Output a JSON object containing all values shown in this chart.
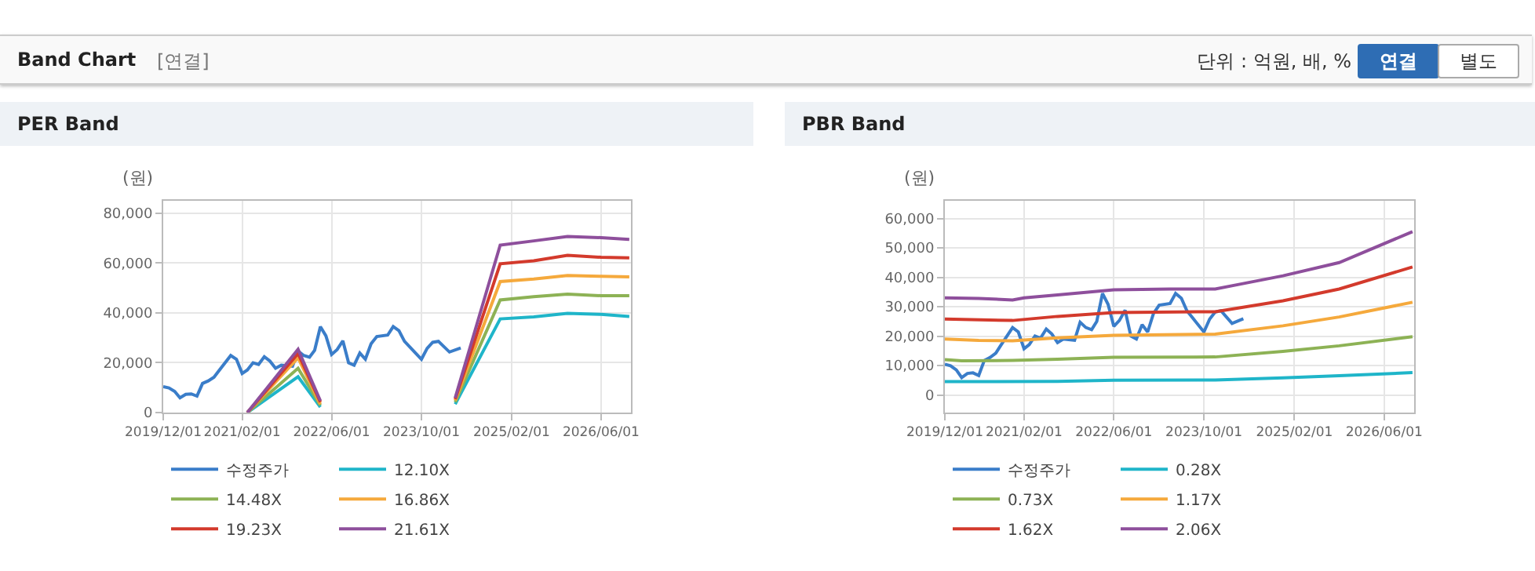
{
  "chart_data": [
    {
      "type": "line",
      "title": "PER Band",
      "ylabel": "(원)",
      "annotations": [
        "Band Chart",
        "[연결]",
        "단위 : 억원, 배, %",
        "연결",
        "별도"
      ],
      "xlim": [
        "2019-12-01",
        "2026-11-10"
      ],
      "xticks": [
        {
          "value": "2019-12-01",
          "label": "2019/12/01"
        },
        {
          "value": "2021-02-01",
          "label": "2021/02/01"
        },
        {
          "value": "2022-06-01",
          "label": "2022/06/01"
        },
        {
          "value": "2023-10-01",
          "label": "2023/10/01"
        },
        {
          "value": "2025-02-01",
          "label": "2025/02/01"
        },
        {
          "value": "2026-06-01",
          "label": "2026/06/01"
        }
      ],
      "ylim": [
        0,
        85000
      ],
      "yticks": [
        0,
        {
          "value": 20000,
          "label": "20,000"
        },
        {
          "value": 40000,
          "label": "40,000"
        },
        {
          "value": 60000,
          "label": "60,000"
        },
        {
          "value": 80000,
          "label": "80,000"
        }
      ],
      "grid": true,
      "legend": "bottom",
      "marker": "none",
      "line_style": "solid",
      "series": [
        {
          "name": "수정주가",
          "color": "#3a7dc9",
          "x": [
            "2019-12",
            "2020-01",
            "2020-02",
            "2020-03",
            "2020-04",
            "2020-05",
            "2020-06",
            "2020-07",
            "2020-08",
            "2020-09",
            "2020-10",
            "2020-12",
            "2021-01",
            "2021-02",
            "2021-03",
            "2021-04",
            "2021-05",
            "2021-06",
            "2021-07",
            "2021-08",
            "2021-09",
            "2021-11",
            "2021-12",
            "2022-01",
            "2022-02",
            "2022-03",
            "2022-04",
            "2022-05",
            "2022-06",
            "2022-07",
            "2022-08",
            "2022-09",
            "2022-10",
            "2022-11",
            "2022-12",
            "2023-01",
            "2023-02",
            "2023-04",
            "2023-05",
            "2023-06",
            "2023-07",
            "2023-08",
            "2023-10",
            "2023-11",
            "2023-12",
            "2024-01",
            "2024-03",
            "2024-05"
          ],
          "values": [
            10400,
            9900,
            8500,
            5900,
            7300,
            7500,
            6600,
            11700,
            12700,
            14200,
            17100,
            22900,
            21400,
            15700,
            17100,
            20000,
            19300,
            22400,
            20700,
            17800,
            19000,
            18600,
            24700,
            22900,
            22200,
            25000,
            34500,
            30800,
            23300,
            25300,
            28800,
            20000,
            19000,
            23900,
            21400,
            27600,
            30500,
            31100,
            34500,
            32900,
            28600,
            26200,
            21400,
            25800,
            28200,
            28600,
            24300,
            25900
          ]
        },
        {
          "name": "12.10X",
          "color": "#1fb5c9",
          "x": [
            "2021-03",
            "2021-12",
            "2022-04",
            "2022-05",
            "2024-04",
            "2024-12",
            "2025-06",
            "2025-12",
            "2026-06",
            "2026-11"
          ],
          "values": [
            0,
            14400,
            2200,
            null,
            3400,
            37600,
            38400,
            39800,
            39400,
            38600
          ]
        },
        {
          "name": "14.48X",
          "color": "#8db255",
          "x": [
            "2021-03",
            "2021-12",
            "2022-04",
            "2022-05",
            "2024-04",
            "2024-12",
            "2025-06",
            "2025-12",
            "2026-06",
            "2026-11"
          ],
          "values": [
            0,
            17800,
            2900,
            null,
            4200,
            45200,
            46500,
            47500,
            46900,
            46900
          ]
        },
        {
          "name": "16.86X",
          "color": "#f5a93c",
          "x": [
            "2021-03",
            "2021-12",
            "2022-04",
            "2022-05",
            "2024-04",
            "2024-12",
            "2025-06",
            "2025-12",
            "2026-06",
            "2026-11"
          ],
          "values": [
            0,
            22000,
            3400,
            null,
            4900,
            52600,
            53600,
            55000,
            54700,
            54500
          ]
        },
        {
          "name": "19.23X",
          "color": "#d33a2c",
          "x": [
            "2021-03",
            "2021-12",
            "2022-04",
            "2022-05",
            "2024-04",
            "2024-12",
            "2025-06",
            "2025-12",
            "2026-06",
            "2026-11"
          ],
          "values": [
            0,
            23700,
            4200,
            null,
            5400,
            59700,
            60900,
            63100,
            62300,
            62100
          ]
        },
        {
          "name": "21.61X",
          "color": "#8e4f9c",
          "x": [
            "2021-03",
            "2021-12",
            "2022-04",
            "2022-05",
            "2024-04",
            "2024-12",
            "2025-06",
            "2025-12",
            "2026-06",
            "2026-11"
          ],
          "values": [
            0,
            25400,
            4700,
            null,
            5900,
            67200,
            68900,
            70700,
            70200,
            69500
          ]
        }
      ]
    },
    {
      "type": "line",
      "title": "PBR Band",
      "ylabel": "(원)",
      "xlim": [
        "2019-12-01",
        "2026-11-10"
      ],
      "xticks": [
        {
          "value": "2019-12-01",
          "label": "2019/12/01"
        },
        {
          "value": "2021-02-01",
          "label": "2021/02/01"
        },
        {
          "value": "2022-06-01",
          "label": "2022/06/01"
        },
        {
          "value": "2023-10-01",
          "label": "2023/10/01"
        },
        {
          "value": "2025-02-01",
          "label": "2025/02/01"
        },
        {
          "value": "2026-06-01",
          "label": "2026/06/01"
        }
      ],
      "ylim": [
        -6000,
        66000
      ],
      "yticks": [
        0,
        {
          "value": 10000,
          "label": "10,000"
        },
        {
          "value": 20000,
          "label": "20,000"
        },
        {
          "value": 30000,
          "label": "30,000"
        },
        {
          "value": 40000,
          "label": "40,000"
        },
        {
          "value": 50000,
          "label": "50,000"
        },
        {
          "value": 60000,
          "label": "60,000"
        }
      ],
      "grid": true,
      "legend": "bottom",
      "marker": "none",
      "line_style": "solid",
      "series": [
        {
          "name": "수정주가",
          "color": "#3a7dc9",
          "x": [
            "2019-12",
            "2020-01",
            "2020-02",
            "2020-03",
            "2020-04",
            "2020-05",
            "2020-06",
            "2020-07",
            "2020-08",
            "2020-09",
            "2020-10",
            "2020-12",
            "2021-01",
            "2021-02",
            "2021-03",
            "2021-04",
            "2021-05",
            "2021-06",
            "2021-07",
            "2021-08",
            "2021-09",
            "2021-11",
            "2021-12",
            "2022-01",
            "2022-02",
            "2022-03",
            "2022-04",
            "2022-05",
            "2022-06",
            "2022-07",
            "2022-08",
            "2022-09",
            "2022-10",
            "2022-11",
            "2022-12",
            "2023-01",
            "2023-02",
            "2023-04",
            "2023-05",
            "2023-06",
            "2023-07",
            "2023-08",
            "2023-10",
            "2023-11",
            "2023-12",
            "2024-01",
            "2024-03",
            "2024-05"
          ],
          "values": [
            10400,
            9900,
            8500,
            5900,
            7300,
            7500,
            6600,
            11700,
            12700,
            14200,
            17100,
            22900,
            21400,
            15700,
            17100,
            20000,
            19300,
            22400,
            20700,
            17800,
            19000,
            18600,
            24700,
            22900,
            22200,
            25000,
            34500,
            30800,
            23300,
            25300,
            28800,
            20000,
            19000,
            23900,
            21400,
            27600,
            30500,
            31100,
            34500,
            32900,
            28600,
            26200,
            21400,
            25800,
            28200,
            28600,
            24300,
            25900
          ]
        },
        {
          "name": "0.28X",
          "color": "#1fb5c9",
          "x": [
            "2019-12",
            "2021-08",
            "2022-06",
            "2023-12",
            "2024-12",
            "2025-10",
            "2026-11"
          ],
          "values": [
            4500,
            4600,
            5000,
            5100,
            5800,
            6500,
            7600
          ]
        },
        {
          "name": "0.73X",
          "color": "#8db255",
          "x": [
            "2019-12",
            "2020-03",
            "2020-12",
            "2021-08",
            "2022-06",
            "2023-12",
            "2024-12",
            "2025-10",
            "2026-11"
          ],
          "values": [
            12000,
            11600,
            11700,
            12100,
            12800,
            12900,
            14800,
            16700,
            19800
          ]
        },
        {
          "name": "1.17X",
          "color": "#f5a93c",
          "x": [
            "2019-12",
            "2020-06",
            "2020-12",
            "2021-08",
            "2022-06",
            "2023-12",
            "2024-12",
            "2025-10",
            "2026-11"
          ],
          "values": [
            19000,
            18500,
            18400,
            19400,
            20300,
            20700,
            23500,
            26500,
            31500
          ]
        },
        {
          "name": "1.62X",
          "color": "#d33a2c",
          "x": [
            "2019-12",
            "2020-12",
            "2021-08",
            "2022-06",
            "2023-12",
            "2024-12",
            "2025-10",
            "2026-11"
          ],
          "values": [
            25800,
            25300,
            26700,
            28000,
            28300,
            32000,
            36000,
            43500
          ]
        },
        {
          "name": "2.06X",
          "color": "#8e4f9c",
          "x": [
            "2019-12",
            "2020-06",
            "2020-12",
            "2021-02",
            "2021-08",
            "2022-06",
            "2023-04",
            "2023-12",
            "2024-04",
            "2024-12",
            "2025-10",
            "2026-11"
          ],
          "values": [
            33000,
            32800,
            32300,
            33000,
            34000,
            35700,
            36000,
            36000,
            37500,
            40500,
            45000,
            55500
          ]
        }
      ]
    }
  ]
}
